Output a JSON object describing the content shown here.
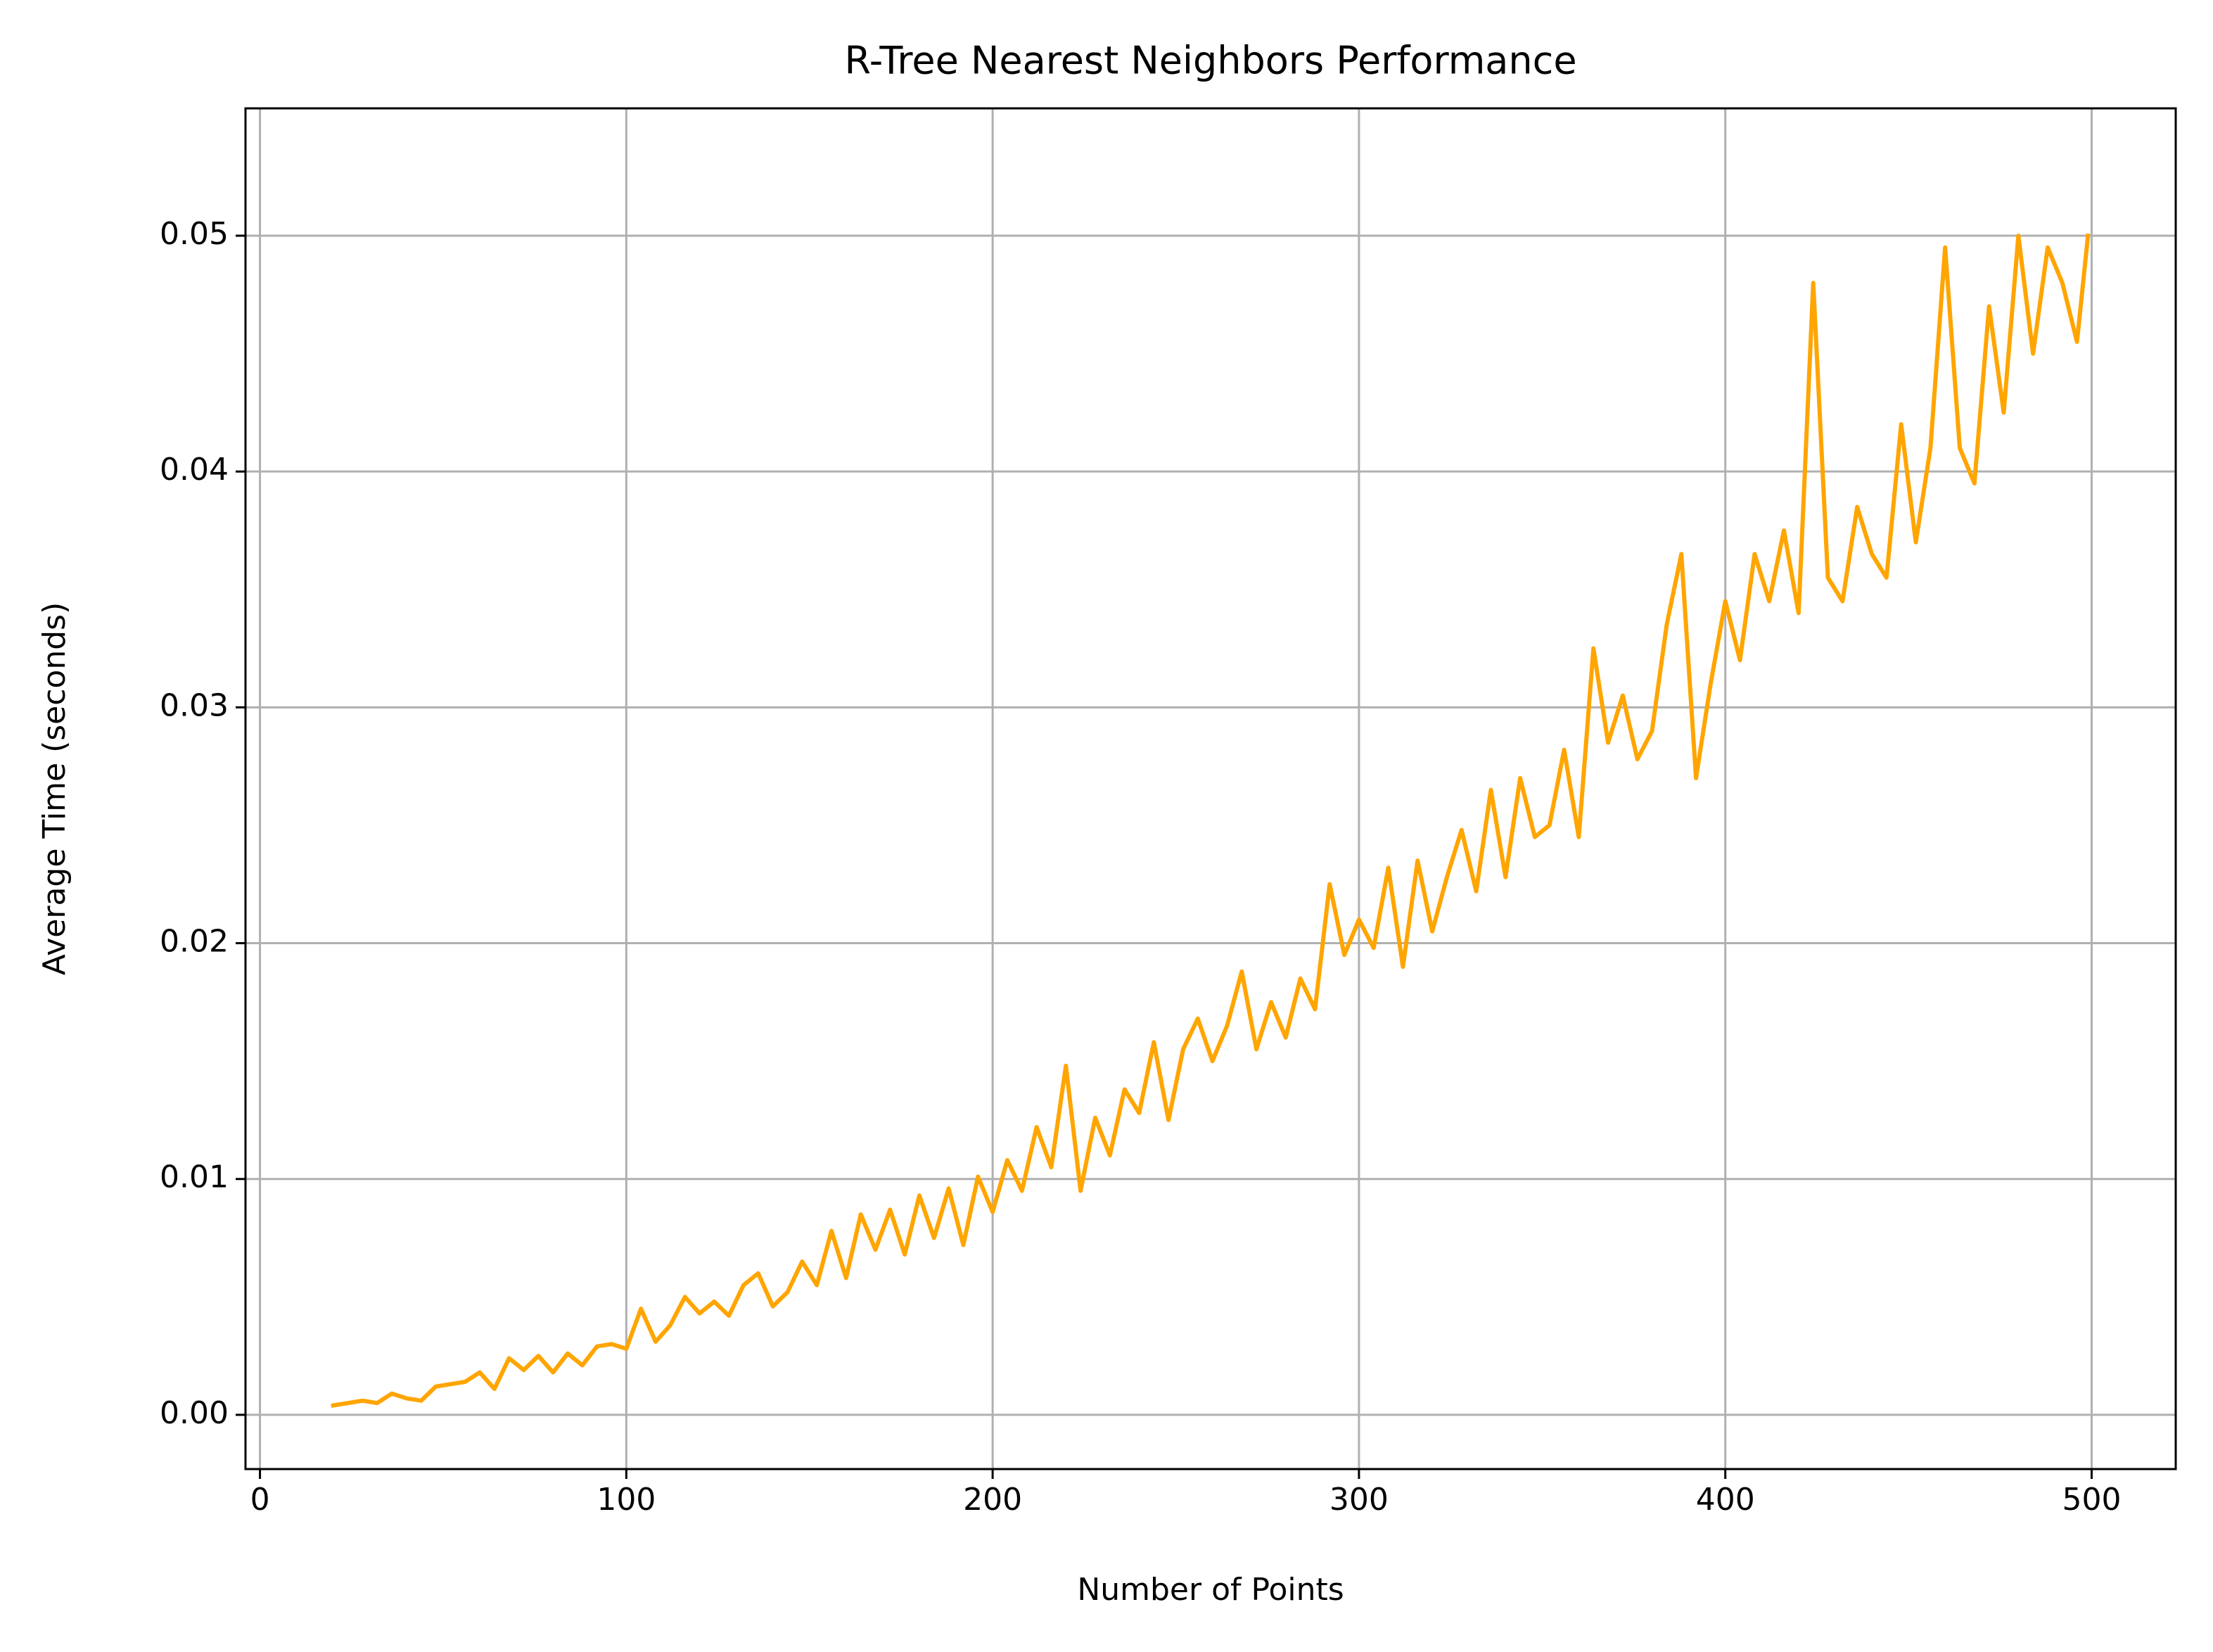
{
  "chart_data": {
    "type": "line",
    "title": "R-Tree Nearest Neighbors Performance",
    "xlabel": "Number of Points",
    "ylabel": "Average Time (seconds)",
    "x": [
      20,
      24,
      28,
      32,
      36,
      40,
      44,
      48,
      52,
      56,
      60,
      64,
      68,
      72,
      76,
      80,
      84,
      88,
      92,
      96,
      100,
      104,
      108,
      112,
      116,
      120,
      124,
      128,
      132,
      136,
      140,
      144,
      148,
      152,
      156,
      160,
      164,
      168,
      172,
      176,
      180,
      184,
      188,
      192,
      196,
      200,
      204,
      208,
      212,
      216,
      220,
      224,
      228,
      232,
      236,
      240,
      244,
      248,
      252,
      256,
      260,
      264,
      268,
      272,
      276,
      280,
      284,
      288,
      292,
      296,
      300,
      304,
      308,
      312,
      316,
      320,
      324,
      328,
      332,
      336,
      340,
      344,
      348,
      352,
      356,
      360,
      364,
      368,
      372,
      376,
      380,
      384,
      388,
      392,
      396,
      400,
      404,
      408,
      412,
      416,
      420,
      424,
      428,
      432,
      436,
      440,
      444,
      448,
      452,
      456,
      460,
      464,
      468,
      472,
      476,
      480,
      484,
      488,
      492,
      496,
      499
    ],
    "series": [
      {
        "color": "#ffa500",
        "values": [
          0.0004,
          0.0005,
          0.0006,
          0.0005,
          0.0009,
          0.0007,
          0.0006,
          0.0012,
          0.0013,
          0.0014,
          0.0018,
          0.0011,
          0.0024,
          0.0019,
          0.0025,
          0.0018,
          0.0026,
          0.0021,
          0.0029,
          0.003,
          0.0028,
          0.0045,
          0.0031,
          0.0038,
          0.005,
          0.0043,
          0.0048,
          0.0042,
          0.0055,
          0.006,
          0.0046,
          0.0052,
          0.0065,
          0.0055,
          0.0078,
          0.0058,
          0.0085,
          0.007,
          0.0087,
          0.0068,
          0.0093,
          0.0075,
          0.0096,
          0.0072,
          0.0101,
          0.0086,
          0.0108,
          0.0095,
          0.0122,
          0.0105,
          0.0148,
          0.0095,
          0.0126,
          0.011,
          0.0138,
          0.0128,
          0.0158,
          0.0125,
          0.0155,
          0.0168,
          0.015,
          0.0165,
          0.0188,
          0.0155,
          0.0175,
          0.016,
          0.0185,
          0.0172,
          0.0225,
          0.0195,
          0.021,
          0.0198,
          0.0232,
          0.019,
          0.0235,
          0.0205,
          0.0228,
          0.0248,
          0.0222,
          0.0265,
          0.0228,
          0.027,
          0.0245,
          0.025,
          0.0282,
          0.0245,
          0.0325,
          0.0285,
          0.0305,
          0.0278,
          0.029,
          0.0335,
          0.0365,
          0.027,
          0.031,
          0.0345,
          0.032,
          0.0365,
          0.0345,
          0.0375,
          0.034,
          0.048,
          0.0355,
          0.0345,
          0.0385,
          0.0365,
          0.0355,
          0.042,
          0.037,
          0.041,
          0.0495,
          0.041,
          0.0395,
          0.047,
          0.0425,
          0.05,
          0.045,
          0.0495,
          0.048,
          0.0455,
          0.05
        ]
      }
    ],
    "xlim": [
      -3.95,
      522.95
    ],
    "xticks": [
      0,
      100,
      200,
      300,
      400,
      500
    ],
    "ylim": [
      -0.0023,
      0.0554
    ],
    "yticks": [
      {
        "value": 0,
        "label": "0.00"
      },
      0.01,
      0.02,
      0.03,
      0.04,
      0.05
    ],
    "grid": true
  }
}
